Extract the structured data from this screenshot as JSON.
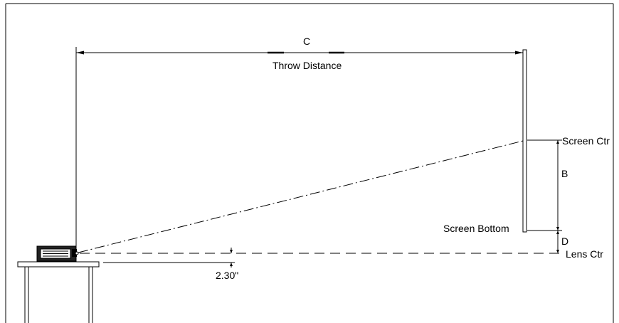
{
  "labels": {
    "dim_c": "C",
    "throw_distance": "Throw Distance",
    "screen_ctr": "Screen Ctr",
    "dim_b": "B",
    "screen_bottom": "Screen Bottom",
    "dim_d": "D",
    "lens_ctr": "Lens Ctr",
    "lens_offset": "2.30\""
  },
  "colors": {
    "line": "#000000",
    "frame": "#000000",
    "background": "#ffffff"
  },
  "icons": {
    "projector": "projector-icon"
  }
}
